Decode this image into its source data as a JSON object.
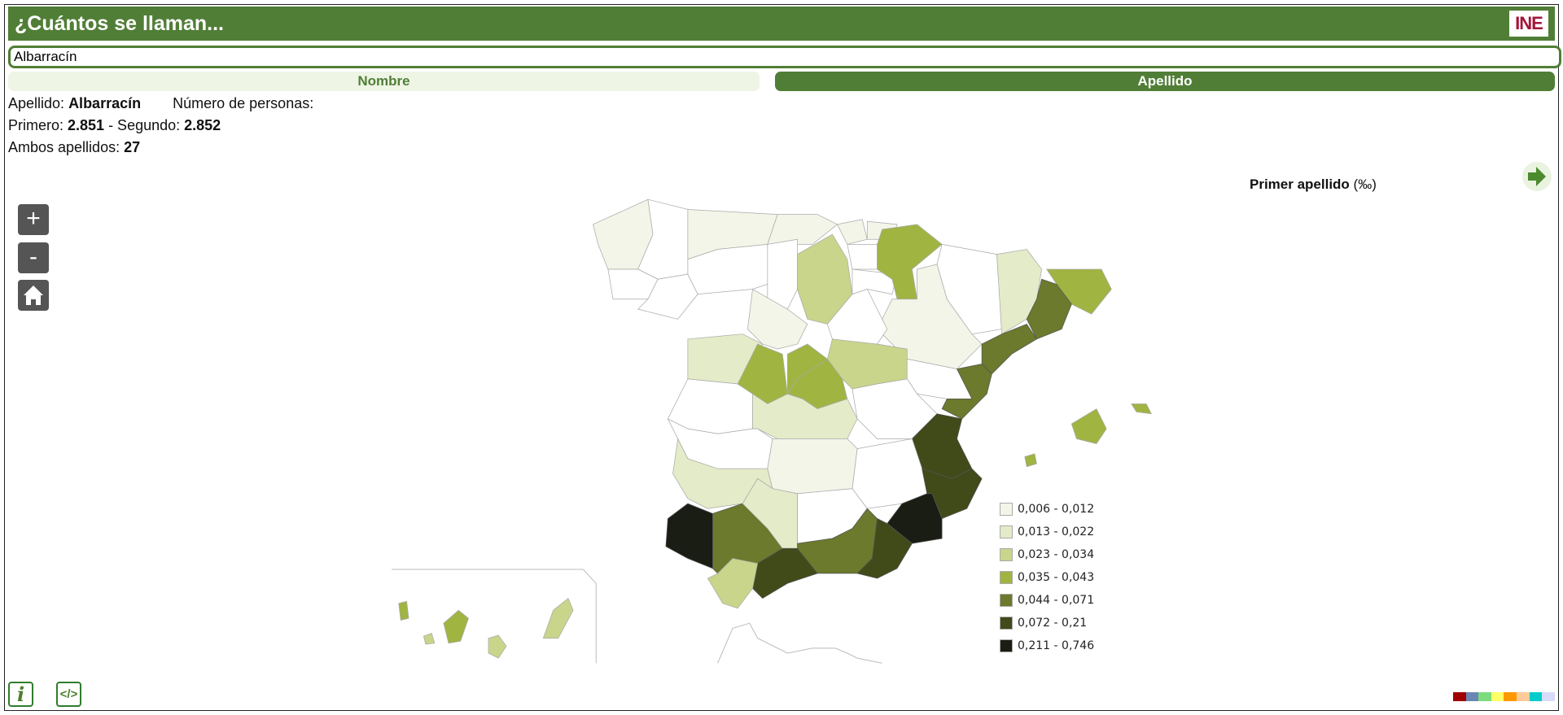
{
  "header": {
    "title": "¿Cuántos se llaman...",
    "logo_text": "INE"
  },
  "search": {
    "value": "Albarracín"
  },
  "tabs": [
    {
      "label": "Nombre",
      "active": false
    },
    {
      "label": "Apellido",
      "active": true
    }
  ],
  "info": {
    "apellido_label": "Apellido: ",
    "apellido_value": "Albarracín",
    "personas_label": "Número de personas:",
    "primero_label": "Primero: ",
    "primero_value": "2.851",
    "segundo_label": " - Segundo: ",
    "segundo_value": "2.852",
    "ambos_label": "Ambos apellidos: ",
    "ambos_value": "27"
  },
  "map": {
    "title": "Primer apellido ",
    "unit": "(‰)",
    "controls": {
      "zoom_in": "+",
      "zoom_out": "-",
      "home_icon": "home-icon"
    },
    "next_icon": "arrow-right-icon",
    "no_data_color": "#ffffff",
    "legend": [
      {
        "label": "0,006 - 0,012",
        "color": "#f3f5e8"
      },
      {
        "label": "0,013 - 0,022",
        "color": "#e4ebc8"
      },
      {
        "label": "0,023 - 0,034",
        "color": "#c8d58a"
      },
      {
        "label": "0,035 - 0,043",
        "color": "#a0b442"
      },
      {
        "label": "0,044 - 0,071",
        "color": "#6b7a2c"
      },
      {
        "label": "0,072 - 0,21",
        "color": "#414a19"
      },
      {
        "label": "0,211 - 0,746",
        "color": "#1a1d14"
      }
    ],
    "region_classes": [
      0,
      -1,
      -1,
      -1,
      0,
      0,
      0,
      0,
      -1,
      -1,
      2,
      -1,
      -1,
      3,
      -1,
      0,
      1,
      3,
      4,
      4,
      1,
      0,
      -1,
      3,
      3,
      3,
      -1,
      2,
      -1,
      4,
      -1,
      1,
      -1,
      5,
      1,
      0,
      -1,
      5,
      6,
      6,
      4,
      1,
      -1,
      4,
      5,
      5,
      2,
      3,
      3,
      3,
      3,
      2,
      3,
      2,
      2
    ]
  },
  "footer": {
    "info_icon": "i",
    "embed_icon": "</>",
    "palette": [
      "#a00000",
      "#6a86b4",
      "#7cdb7c",
      "#ffff66",
      "#ff9900",
      "#ffcc99",
      "#00cccc",
      "#d8dcf8"
    ]
  }
}
